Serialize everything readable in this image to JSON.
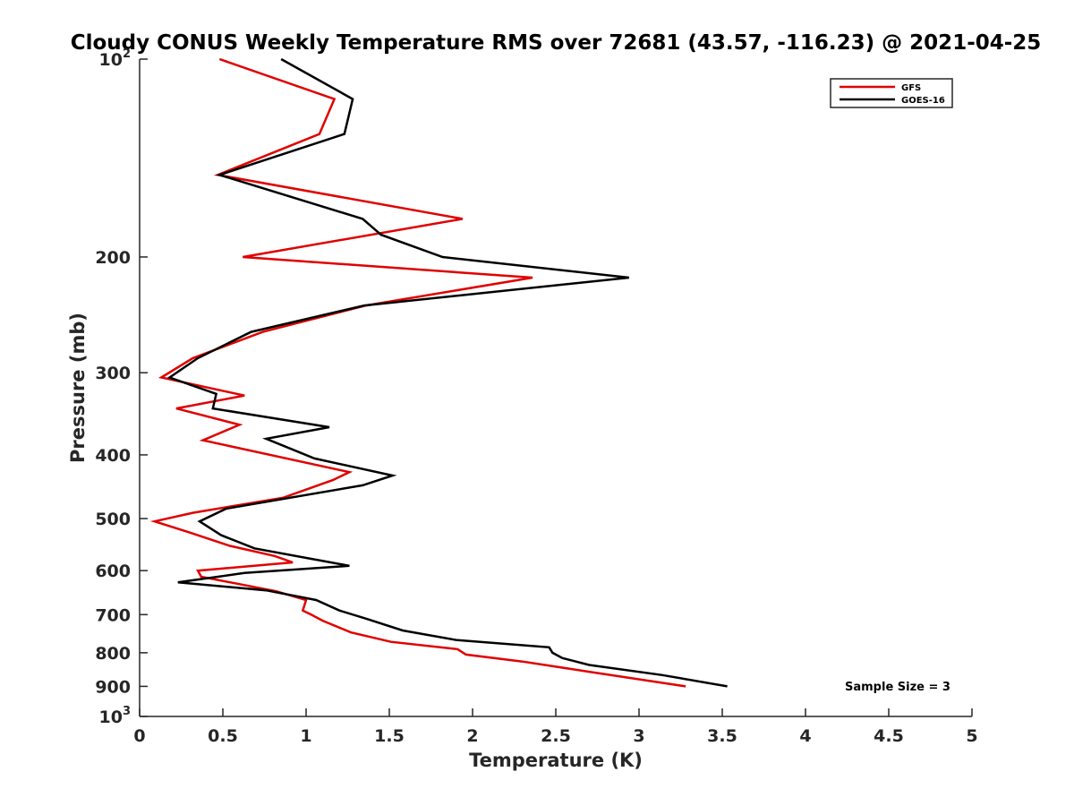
{
  "chart_data": {
    "type": "line",
    "title": "Cloudy CONUS Weekly Temperature RMS over 72681 (43.57, -116.23) @ 2021-04-25",
    "xlabel": "Temperature (K)",
    "ylabel": "Pressure (mb)",
    "xlim": [
      0,
      5
    ],
    "ylim": [
      100,
      1000
    ],
    "y_scale": "log",
    "y_reversed": true,
    "grid": false,
    "legend_position": "top-right",
    "x_tick_labels": [
      "0",
      "0.5",
      "1",
      "1.5",
      "2",
      "2.5",
      "3",
      "3.5",
      "4",
      "4.5",
      "5"
    ],
    "x_ticks": [
      0,
      0.5,
      1,
      1.5,
      2,
      2.5,
      3,
      3.5,
      4,
      4.5,
      5
    ],
    "y_ticks": [
      {
        "value": 100,
        "base": "10",
        "exp": "2"
      },
      {
        "value": 200,
        "label": "200"
      },
      {
        "value": 300,
        "label": "300"
      },
      {
        "value": 400,
        "label": "400"
      },
      {
        "value": 500,
        "label": "500"
      },
      {
        "value": 600,
        "label": "600"
      },
      {
        "value": 700,
        "label": "700"
      },
      {
        "value": 800,
        "label": "800"
      },
      {
        "value": 900,
        "label": "900"
      },
      {
        "value": 1000,
        "base": "10",
        "exp": "3"
      }
    ],
    "annotation": "Sample Size = 3",
    "series": [
      {
        "name": "GFS",
        "color": "#e00000",
        "points": [
          [
            0.48,
            100
          ],
          [
            1.17,
            115
          ],
          [
            1.08,
            130
          ],
          [
            0.47,
            150
          ],
          [
            1.94,
            175
          ],
          [
            0.62,
            200
          ],
          [
            2.36,
            215
          ],
          [
            1.36,
            237
          ],
          [
            0.74,
            260
          ],
          [
            0.32,
            285
          ],
          [
            0.13,
            305
          ],
          [
            0.63,
            325
          ],
          [
            0.22,
            340
          ],
          [
            0.6,
            360
          ],
          [
            0.38,
            380
          ],
          [
            1.26,
            425
          ],
          [
            1.16,
            437
          ],
          [
            0.86,
            465
          ],
          [
            0.32,
            490
          ],
          [
            0.09,
            505
          ],
          [
            0.3,
            525
          ],
          [
            0.54,
            550
          ],
          [
            0.81,
            570
          ],
          [
            0.92,
            583
          ],
          [
            0.35,
            600
          ],
          [
            0.37,
            613
          ],
          [
            0.82,
            645
          ],
          [
            1.0,
            665
          ],
          [
            0.98,
            690
          ],
          [
            1.03,
            700
          ],
          [
            1.1,
            715
          ],
          [
            1.27,
            745
          ],
          [
            1.51,
            770
          ],
          [
            1.91,
            790
          ],
          [
            1.96,
            805
          ],
          [
            2.3,
            825
          ],
          [
            2.7,
            855
          ],
          [
            3.28,
            900
          ]
        ]
      },
      {
        "name": "GOES-16",
        "color": "#000000",
        "points": [
          [
            0.85,
            100
          ],
          [
            1.28,
            115
          ],
          [
            1.23,
            130
          ],
          [
            0.48,
            150
          ],
          [
            1.34,
            175
          ],
          [
            1.45,
            185
          ],
          [
            1.82,
            200
          ],
          [
            2.94,
            215
          ],
          [
            1.35,
            237
          ],
          [
            0.67,
            260
          ],
          [
            0.35,
            285
          ],
          [
            0.18,
            305
          ],
          [
            0.46,
            323
          ],
          [
            0.44,
            340
          ],
          [
            1.14,
            363
          ],
          [
            0.76,
            378
          ],
          [
            1.05,
            405
          ],
          [
            1.52,
            430
          ],
          [
            1.34,
            445
          ],
          [
            0.52,
            483
          ],
          [
            0.36,
            505
          ],
          [
            0.49,
            530
          ],
          [
            0.69,
            555
          ],
          [
            1.02,
            575
          ],
          [
            1.26,
            590
          ],
          [
            0.63,
            605
          ],
          [
            0.23,
            625
          ],
          [
            0.76,
            643
          ],
          [
            1.06,
            665
          ],
          [
            1.2,
            690
          ],
          [
            1.36,
            710
          ],
          [
            1.58,
            740
          ],
          [
            1.9,
            765
          ],
          [
            2.46,
            785
          ],
          [
            2.48,
            800
          ],
          [
            2.54,
            815
          ],
          [
            2.7,
            835
          ],
          [
            3.14,
            865
          ],
          [
            3.53,
            900
          ]
        ]
      }
    ]
  }
}
